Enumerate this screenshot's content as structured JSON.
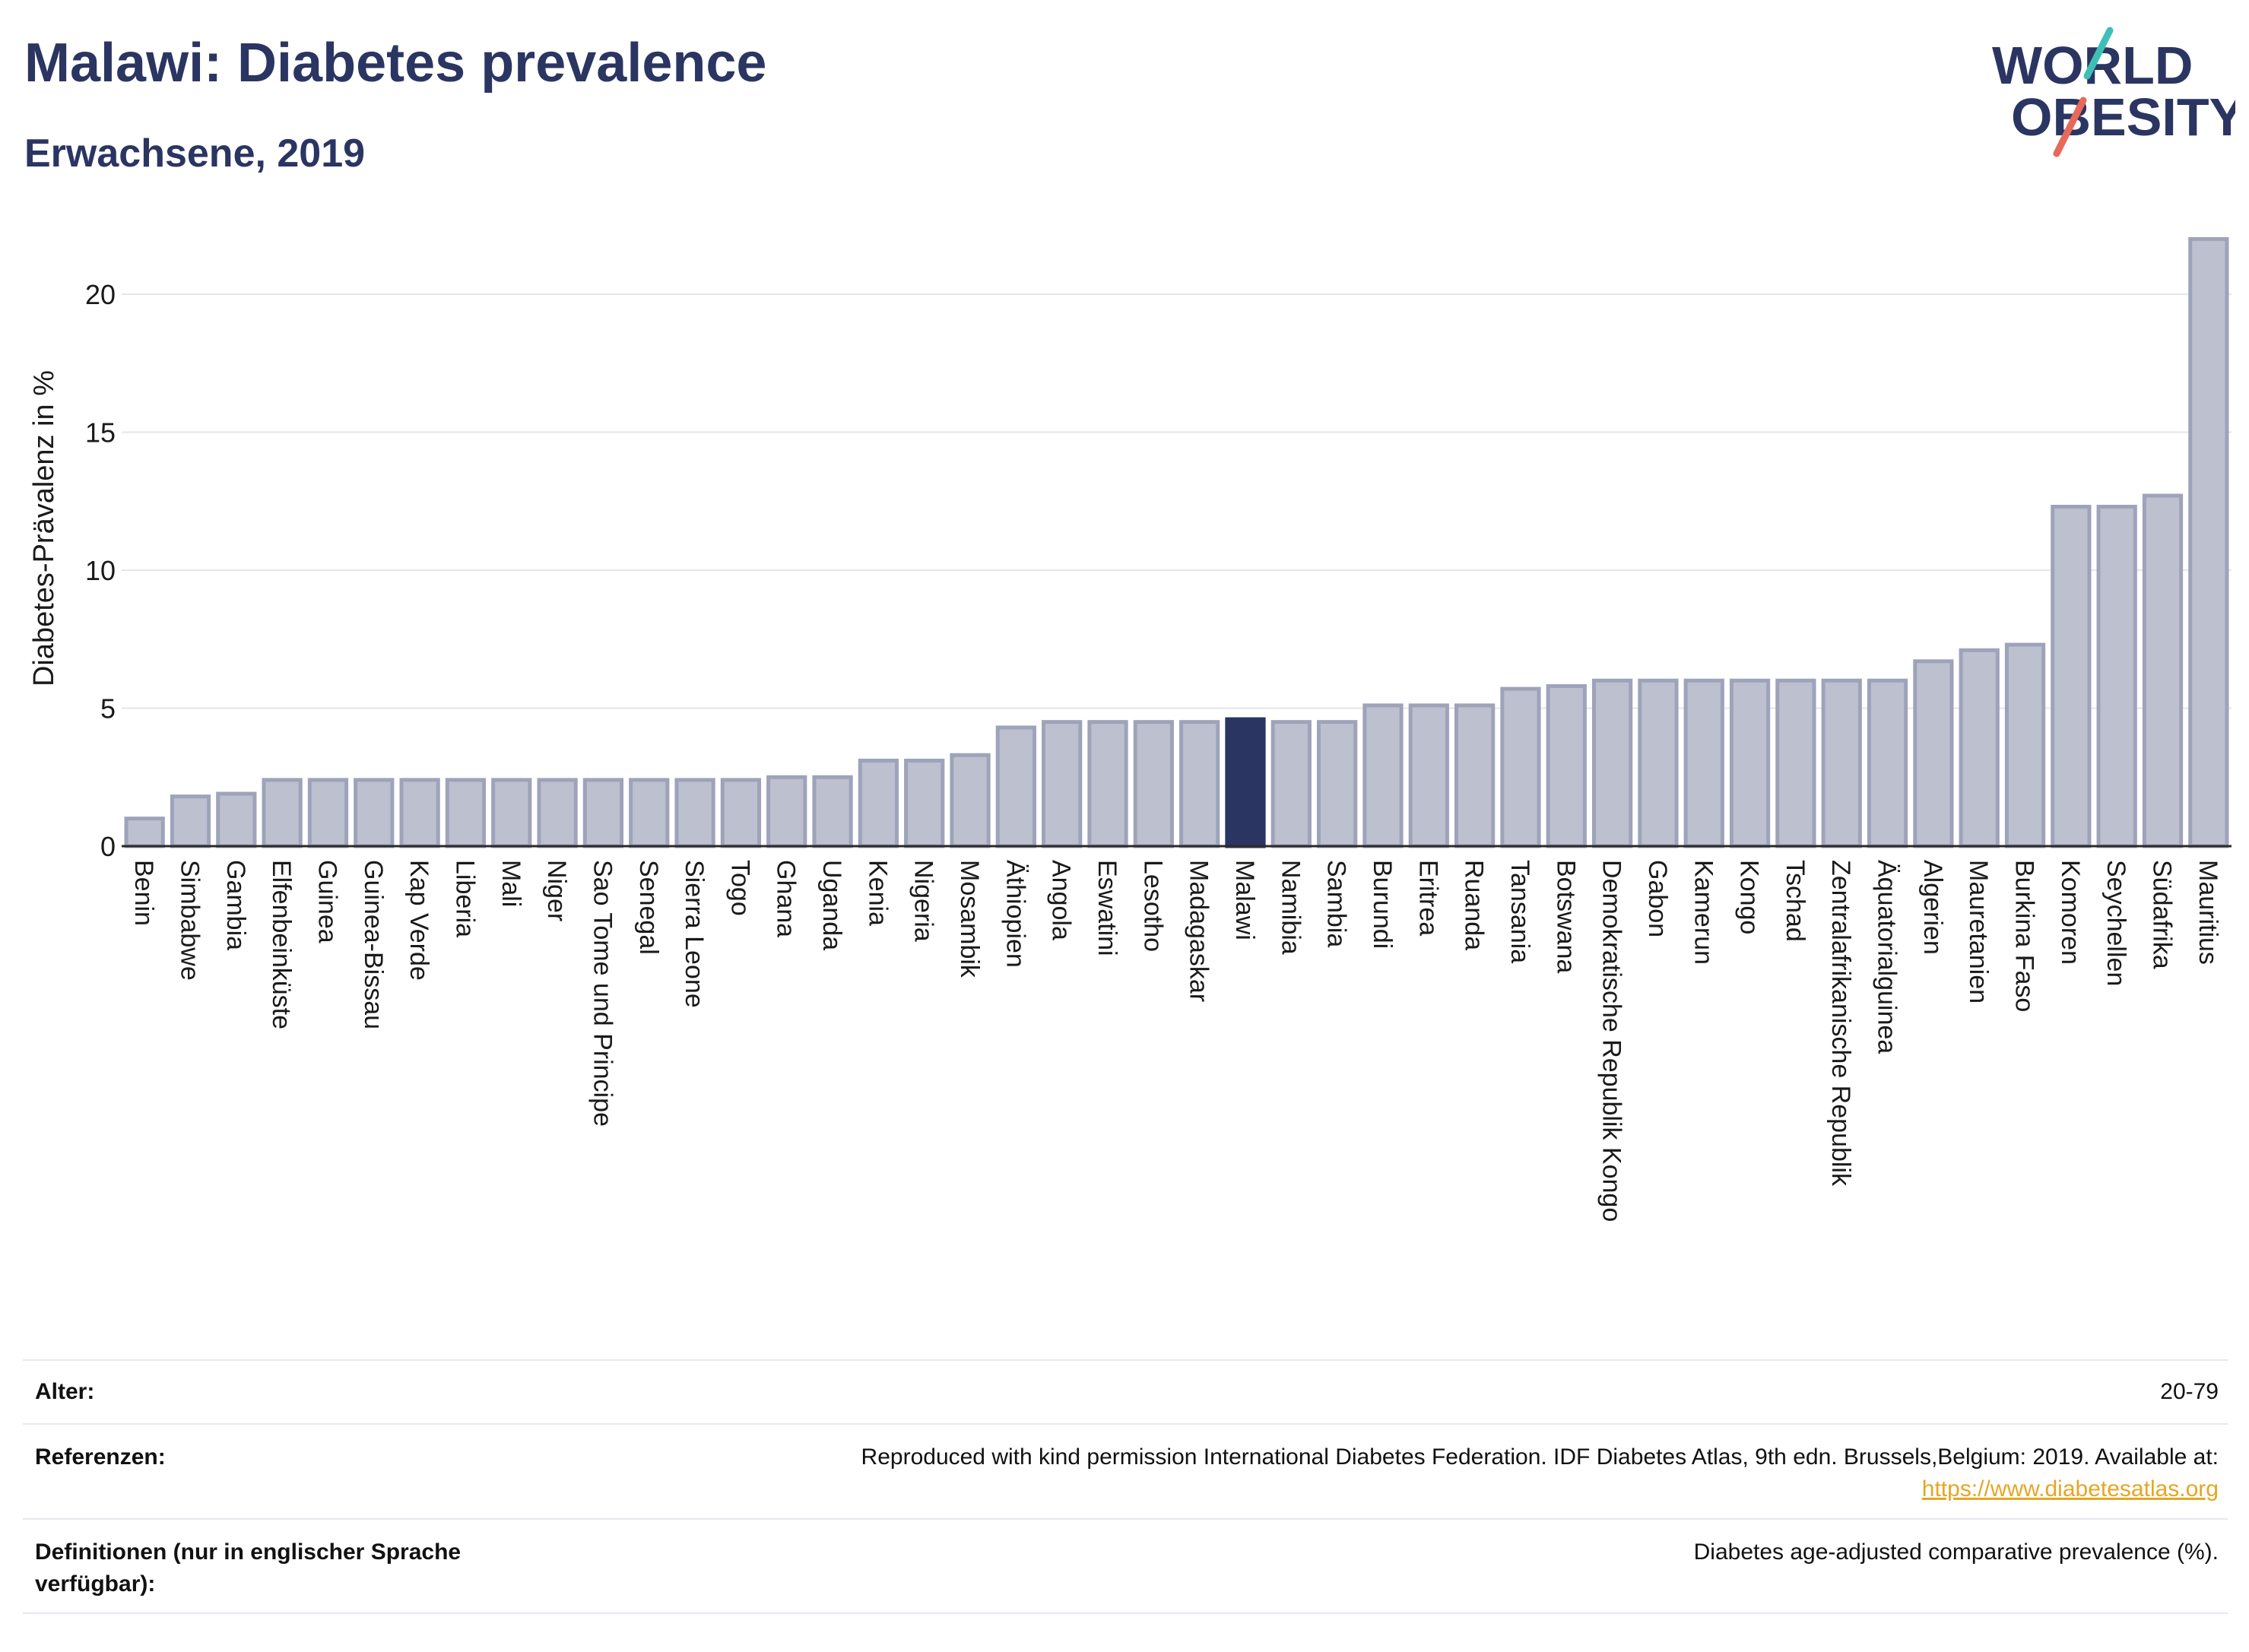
{
  "header": {
    "title": "Malawi: Diabetes prevalence",
    "subtitle": "Erwachsene, 2019",
    "logo_text_line1": "WORLD",
    "logo_text_line2": "OBESITY"
  },
  "colors": {
    "title": "#2b3562",
    "bar_default": "#bcc0cf",
    "bar_default_border": "#9ea3ba",
    "bar_highlight": "#2b3562",
    "logo_teal": "#3dbfb8",
    "logo_coral": "#e8685a",
    "link": "#e6a623"
  },
  "chart_data": {
    "type": "bar",
    "title": "",
    "xlabel": "",
    "ylabel": "Diabetes-Prävalenz in %",
    "ylim": [
      0,
      22.5
    ],
    "yticks": [
      0,
      5,
      10,
      15,
      20
    ],
    "grid": true,
    "highlight": "Malawi",
    "categories": [
      "Benin",
      "Simbabwe",
      "Gambia",
      "Elfenbeinküste",
      "Guinea",
      "Guinea-Bissau",
      "Kap Verde",
      "Liberia",
      "Mali",
      "Niger",
      "Sao Tome und Principe",
      "Senegal",
      "Sierra Leone",
      "Togo",
      "Ghana",
      "Uganda",
      "Kenia",
      "Nigeria",
      "Mosambik",
      "Äthiopien",
      "Angola",
      "Eswatini",
      "Lesotho",
      "Madagaskar",
      "Malawi",
      "Namibia",
      "Sambia",
      "Burundi",
      "Eritrea",
      "Ruanda",
      "Tansania",
      "Botswana",
      "Demokratische Republik Kongo",
      "Gabon",
      "Kamerun",
      "Kongo",
      "Tschad",
      "Zentralafrikanische Republik",
      "Äquatorialguinea",
      "Algerien",
      "Mauretanien",
      "Burkina Faso",
      "Komoren",
      "Seychellen",
      "Südafrika",
      "Mauritius"
    ],
    "values": [
      1.0,
      1.8,
      1.9,
      2.4,
      2.4,
      2.4,
      2.4,
      2.4,
      2.4,
      2.4,
      2.4,
      2.4,
      2.4,
      2.4,
      2.5,
      2.5,
      3.1,
      3.1,
      3.3,
      4.3,
      4.5,
      4.5,
      4.5,
      4.5,
      4.6,
      4.5,
      4.5,
      5.1,
      5.1,
      5.1,
      5.7,
      5.8,
      6.0,
      6.0,
      6.0,
      6.0,
      6.0,
      6.0,
      6.0,
      6.7,
      7.1,
      7.3,
      12.3,
      12.3,
      12.7,
      22.0
    ]
  },
  "meta": {
    "age_label": "Alter:",
    "age_value": "20-79",
    "references_label": "Referenzen:",
    "references_text": "Reproduced with kind permission International Diabetes Federation. IDF Diabetes Atlas, 9th edn. Brussels,Belgium: 2019. Available at:",
    "references_link": "https://www.diabetesatlas.org",
    "definitions_label": "Definitionen (nur in englischer Sprache verfügbar):",
    "definitions_value": "Diabetes age-adjusted comparative prevalence (%)."
  }
}
